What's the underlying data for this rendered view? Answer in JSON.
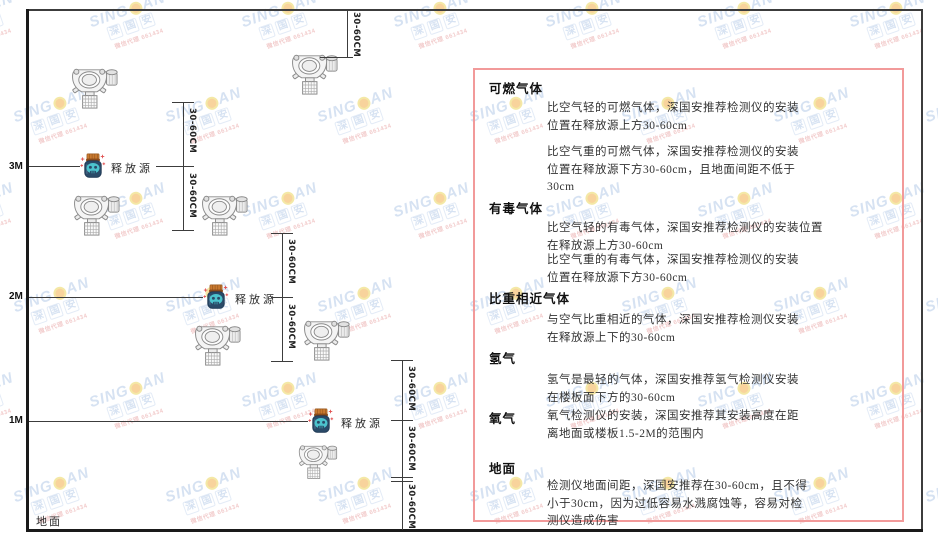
{
  "watermark": {
    "brand_left": "SING",
    "brand_right": "AN",
    "brand_cn": "深国安",
    "red_text": "微信代理 661434"
  },
  "diagram": {
    "ground_label": "地面",
    "source_label": "释放源",
    "dim_label": "30-60CM",
    "level_labels": [
      "3M",
      "2M",
      "1M"
    ]
  },
  "panel": {
    "sections": [
      {
        "heading": "可燃气体",
        "paras": [
          "比空气轻的可燃气体，深国安推荐检测仪的安装\n位置在释放源上方30-60cm",
          "比空气重的可燃气体，深国安推荐检测仪的安装\n位置在释放源下方30-60cm，且地面间距不低于\n30cm"
        ]
      },
      {
        "heading": "有毒气体",
        "paras": [
          "比空气轻的有毒气体，深国安推荐检测仪的安装位置\n在释放源上方30-60cm",
          "比空气重的有毒气体，深国安推荐检测仪的安装\n位置在释放源下方30-60cm"
        ]
      },
      {
        "heading": "比重相近气体",
        "paras": [
          "与空气比重相近的气体，深国安推荐检测仪安装\n在释放源上下的30-60cm"
        ]
      },
      {
        "heading": "氢气",
        "paras": [
          "氢气是最轻的气体，深国安推荐氢气检测仪安装\n在楼板面下方的30-60cm"
        ]
      },
      {
        "heading": "氧气",
        "paras": [
          "氧气检测仪的安装，深国安推荐其安装高度在距\n离地面或楼板1.5-2M的范围内"
        ]
      },
      {
        "heading": "地面",
        "paras": [
          "检测仪地面间距，深国安推荐在30-60cm，且不得\n小于30cm，因为过低容易水溅腐蚀等，容易对检\n测仪造成伤害"
        ]
      }
    ]
  }
}
